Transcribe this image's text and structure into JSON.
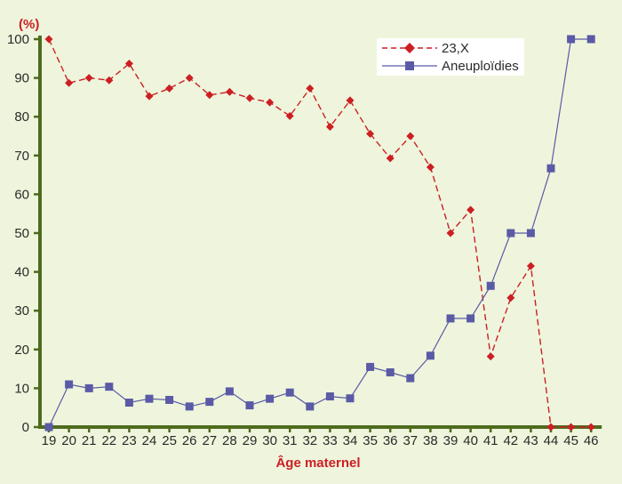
{
  "chart_data": {
    "type": "line",
    "ylabel": "(%)",
    "xlabel": "Âge maternel",
    "ylim": [
      0,
      100
    ],
    "yticks": [
      0,
      10,
      20,
      30,
      40,
      50,
      60,
      70,
      80,
      90,
      100
    ],
    "categories": [
      "19",
      "20",
      "21",
      "22",
      "23",
      "24",
      "25",
      "26",
      "27",
      "28",
      "29",
      "30",
      "31",
      "32",
      "33",
      "34",
      "35",
      "36",
      "37",
      "38",
      "39",
      "40",
      "41",
      "42",
      "43",
      "44",
      "45",
      "46"
    ],
    "grid": false,
    "legend_position": "top-right",
    "series": [
      {
        "name": "23,X",
        "color": "#cc1f24",
        "style": "dashed",
        "marker": "diamond",
        "values": [
          100,
          88.7,
          90,
          89.4,
          93.7,
          85.3,
          87.3,
          90,
          85.6,
          86.4,
          84.8,
          83.7,
          80.2,
          87.3,
          77.4,
          84.2,
          75.6,
          69.3,
          75,
          67,
          50,
          56,
          18.2,
          33.3,
          41.5,
          0,
          0,
          0
        ]
      },
      {
        "name": "Aneuploïdies",
        "color": "#5b5aa6",
        "style": "solid",
        "marker": "square",
        "values": [
          0,
          11,
          10,
          10.4,
          6.3,
          7.3,
          7,
          5.3,
          6.5,
          9.2,
          5.6,
          7.3,
          8.9,
          5.3,
          7.9,
          7.4,
          15.5,
          14.1,
          12.6,
          18.4,
          28,
          28,
          36.4,
          50,
          50,
          66.7,
          100,
          100
        ]
      }
    ]
  }
}
